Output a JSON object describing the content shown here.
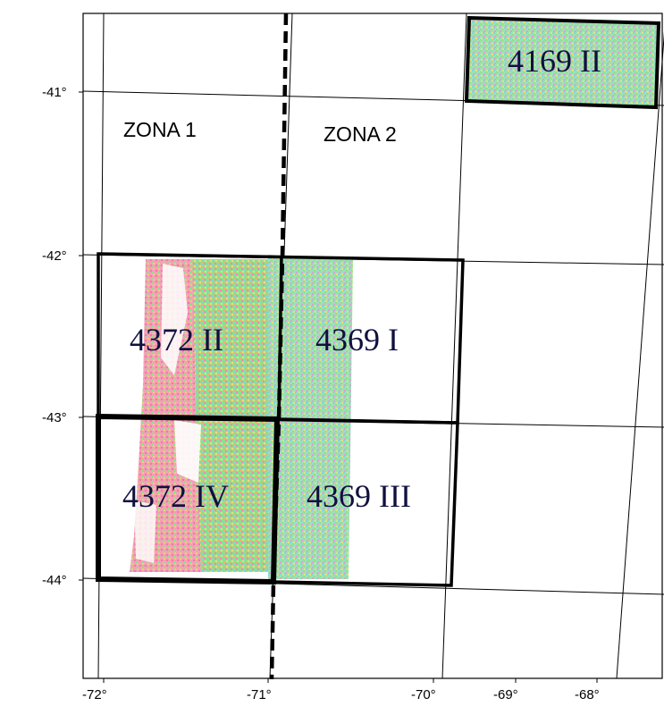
{
  "map": {
    "zone_labels": [
      "ZONA 1",
      "ZONA 2"
    ],
    "lat_ticks": [
      {
        "value": -41,
        "label": "-41°"
      },
      {
        "value": -42,
        "label": "-42°"
      },
      {
        "value": -43,
        "label": "-43°"
      },
      {
        "value": -44,
        "label": "-44°"
      }
    ],
    "lon_ticks": [
      {
        "value": -72,
        "label": "-72°"
      },
      {
        "value": -71,
        "label": "-71°"
      },
      {
        "value": -70,
        "label": "-70°"
      },
      {
        "value": -69,
        "label": "-69°"
      },
      {
        "value": -68,
        "label": "-68°"
      }
    ],
    "sheets": [
      {
        "label": "4169 II",
        "lon": [
          -68.83,
          -67.75
        ],
        "lat": [
          -40.5,
          -41.0
        ]
      },
      {
        "label": "4372 II",
        "lon": [
          -72.0,
          -70.5
        ],
        "lat": [
          -42.0,
          -43.0
        ]
      },
      {
        "label": "4369 I",
        "lon": [
          -70.5,
          -69.0
        ],
        "lat": [
          -42.0,
          -43.0
        ]
      },
      {
        "label": "4372 IV",
        "lon": [
          -72.0,
          -70.5
        ],
        "lat": [
          -43.0,
          -44.0
        ]
      },
      {
        "label": "4369 III",
        "lon": [
          -70.5,
          -69.0
        ],
        "lat": [
          -43.0,
          -44.0
        ]
      }
    ],
    "zone_boundary_lon": -70.5,
    "colors": {
      "pink": "#f08ab0",
      "green": "#8fe08a",
      "cyan": "#7fd6d8",
      "yellow": "#e8e07a",
      "orange": "#f0b070"
    }
  }
}
